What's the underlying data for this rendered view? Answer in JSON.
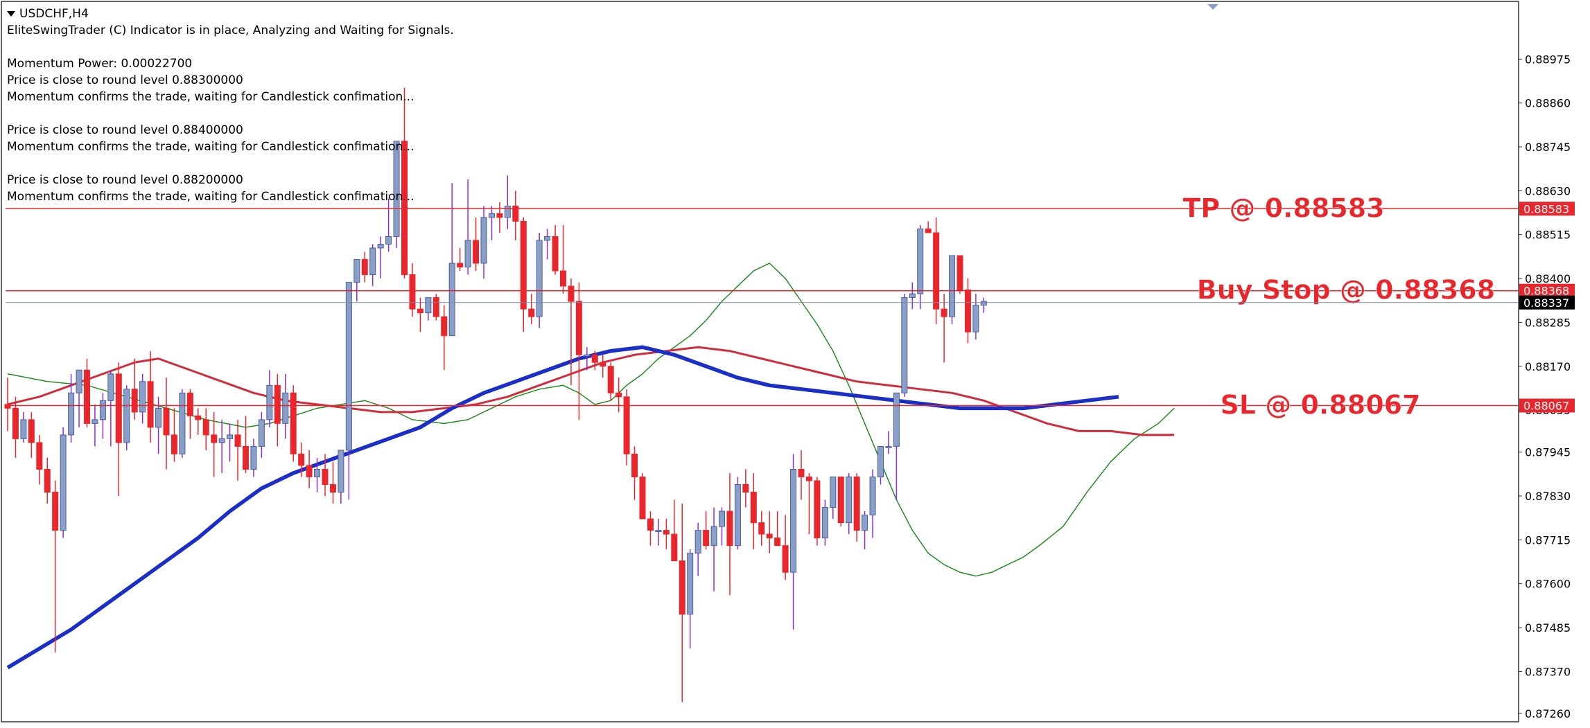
{
  "header": {
    "symbol": "USDCHF,H4",
    "status": "EliteSwingTrader (C) Indicator is in place, Analyzing and Waiting for Signals.",
    "lines": [
      "",
      "Momentum Power: 0.00022700",
      "Price is close to round level 0.88300000",
      "Momentum confirms the trade, waiting for Candlestick confimation...",
      "",
      "Price is close to round level 0.88400000",
      "Momentum confirms the trade, waiting for Candlestick confimation...",
      "",
      "Price is close to round level 0.88200000",
      "Momentum confirms the trade, waiting for Candlestick confimation..."
    ]
  },
  "colors": {
    "bull": "#8a9fc8",
    "bear": "#e8262c",
    "wick_bull": "#8a2be2",
    "wick_bear": "#e8262c",
    "ma_fast": "#228b22",
    "ma_mid": "#d02c3c",
    "ma_slow": "#1a2ec8",
    "level": "#e8262c",
    "bid": "#7a8aa8"
  },
  "chart_data": {
    "type": "candlestick",
    "title": "USDCHF,H4",
    "ylim": [
      0.8726,
      0.8909
    ],
    "y_ticks": [
      "0.88975",
      "0.88860",
      "0.88745",
      "0.88630",
      "0.88515",
      "0.88400",
      "0.88285",
      "0.88170",
      "0.88055",
      "0.87945",
      "0.87830",
      "0.87715",
      "0.87600",
      "0.87485",
      "0.87370",
      "0.87260"
    ],
    "levels": [
      {
        "name": "TP",
        "label": "TP @ 0.88583",
        "value": 0.88583,
        "tag": "0.88583"
      },
      {
        "name": "Buy Stop",
        "label": "Buy Stop @ 0.88368",
        "value": 0.88368,
        "tag": "0.88368"
      },
      {
        "name": "SL",
        "label": "SL @ 0.88067",
        "value": 0.88067,
        "tag": "0.88067"
      }
    ],
    "bid": {
      "value": 0.88337,
      "tag": "0.88337"
    },
    "candles": [
      [
        0.8807,
        0.8814,
        0.88,
        0.8806
      ],
      [
        0.8806,
        0.8809,
        0.8793,
        0.8798
      ],
      [
        0.8798,
        0.8805,
        0.8797,
        0.8803
      ],
      [
        0.8803,
        0.8805,
        0.8793,
        0.8797
      ],
      [
        0.8797,
        0.8799,
        0.8786,
        0.879
      ],
      [
        0.879,
        0.8793,
        0.8781,
        0.8784
      ],
      [
        0.8784,
        0.8787,
        0.8742,
        0.8774
      ],
      [
        0.8774,
        0.8801,
        0.8772,
        0.8799
      ],
      [
        0.8799,
        0.8815,
        0.8797,
        0.881
      ],
      [
        0.881,
        0.8816,
        0.8801,
        0.8816
      ],
      [
        0.8816,
        0.8819,
        0.8801,
        0.8802
      ],
      [
        0.8802,
        0.8807,
        0.8796,
        0.8803
      ],
      [
        0.8803,
        0.881,
        0.8798,
        0.8808
      ],
      [
        0.8808,
        0.8816,
        0.8796,
        0.8815
      ],
      [
        0.8815,
        0.8818,
        0.8783,
        0.8797
      ],
      [
        0.8797,
        0.8812,
        0.8795,
        0.8811
      ],
      [
        0.8811,
        0.8819,
        0.8803,
        0.8805
      ],
      [
        0.8805,
        0.8815,
        0.8802,
        0.8813
      ],
      [
        0.8813,
        0.8821,
        0.8797,
        0.8801
      ],
      [
        0.8801,
        0.8809,
        0.8794,
        0.8806
      ],
      [
        0.8806,
        0.8814,
        0.879,
        0.8799
      ],
      [
        0.8799,
        0.8806,
        0.8792,
        0.8794
      ],
      [
        0.8794,
        0.8811,
        0.8793,
        0.881
      ],
      [
        0.881,
        0.8811,
        0.8798,
        0.8804
      ],
      [
        0.8804,
        0.8806,
        0.8799,
        0.8803
      ],
      [
        0.8803,
        0.8806,
        0.8795,
        0.8799
      ],
      [
        0.8799,
        0.8805,
        0.8788,
        0.8797
      ],
      [
        0.8797,
        0.8803,
        0.8789,
        0.8798
      ],
      [
        0.8798,
        0.8802,
        0.8792,
        0.8799
      ],
      [
        0.8799,
        0.8803,
        0.8787,
        0.8796
      ],
      [
        0.8796,
        0.8804,
        0.8789,
        0.879
      ],
      [
        0.879,
        0.8798,
        0.8788,
        0.8796
      ],
      [
        0.8796,
        0.8805,
        0.8793,
        0.8803
      ],
      [
        0.8803,
        0.8816,
        0.8801,
        0.8812
      ],
      [
        0.8812,
        0.8815,
        0.8796,
        0.8802
      ],
      [
        0.8802,
        0.8815,
        0.8798,
        0.881
      ],
      [
        0.881,
        0.8812,
        0.8792,
        0.8794
      ],
      [
        0.8794,
        0.8797,
        0.8788,
        0.8791
      ],
      [
        0.8791,
        0.8795,
        0.8785,
        0.8788
      ],
      [
        0.8788,
        0.8793,
        0.8784,
        0.879
      ],
      [
        0.879,
        0.8794,
        0.8783,
        0.8786
      ],
      [
        0.8786,
        0.8792,
        0.8781,
        0.8784
      ],
      [
        0.8784,
        0.8795,
        0.8781,
        0.8795
      ],
      [
        0.8795,
        0.8839,
        0.8782,
        0.8839
      ],
      [
        0.8839,
        0.8845,
        0.8834,
        0.8845
      ],
      [
        0.8845,
        0.8847,
        0.8839,
        0.8841
      ],
      [
        0.8841,
        0.8849,
        0.8838,
        0.8848
      ],
      [
        0.8848,
        0.8851,
        0.884,
        0.8849
      ],
      [
        0.8849,
        0.8861,
        0.8847,
        0.8851
      ],
      [
        0.8851,
        0.8876,
        0.8848,
        0.8876
      ],
      [
        0.8876,
        0.889,
        0.884,
        0.8841
      ],
      [
        0.8841,
        0.8844,
        0.883,
        0.8832
      ],
      [
        0.8832,
        0.8835,
        0.8826,
        0.8831
      ],
      [
        0.8831,
        0.8835,
        0.8829,
        0.8835
      ],
      [
        0.8835,
        0.8836,
        0.8829,
        0.883
      ],
      [
        0.883,
        0.8833,
        0.8816,
        0.8825
      ],
      [
        0.8825,
        0.8865,
        0.8825,
        0.8844
      ],
      [
        0.8844,
        0.8848,
        0.8842,
        0.8843
      ],
      [
        0.8843,
        0.8866,
        0.8841,
        0.885
      ],
      [
        0.885,
        0.8856,
        0.8842,
        0.8844
      ],
      [
        0.8844,
        0.8859,
        0.884,
        0.8856
      ],
      [
        0.8856,
        0.8859,
        0.885,
        0.8857
      ],
      [
        0.8857,
        0.886,
        0.8852,
        0.8856
      ],
      [
        0.8856,
        0.8867,
        0.8853,
        0.8859
      ],
      [
        0.8859,
        0.8863,
        0.885,
        0.8855
      ],
      [
        0.8855,
        0.8856,
        0.8826,
        0.8832
      ],
      [
        0.8832,
        0.8836,
        0.8828,
        0.883
      ],
      [
        0.883,
        0.8852,
        0.8827,
        0.885
      ],
      [
        0.885,
        0.8853,
        0.8845,
        0.8851
      ],
      [
        0.8851,
        0.8854,
        0.8841,
        0.8842
      ],
      [
        0.8842,
        0.8854,
        0.8836,
        0.8838
      ],
      [
        0.8838,
        0.884,
        0.8812,
        0.8834
      ],
      [
        0.8834,
        0.8839,
        0.8803,
        0.882
      ],
      [
        0.882,
        0.8822,
        0.8816,
        0.882
      ],
      [
        0.882,
        0.8821,
        0.8816,
        0.8818
      ],
      [
        0.8818,
        0.882,
        0.8814,
        0.8817
      ],
      [
        0.8817,
        0.8818,
        0.8808,
        0.881
      ],
      [
        0.881,
        0.8814,
        0.8805,
        0.8809
      ],
      [
        0.8809,
        0.8811,
        0.8791,
        0.8794
      ],
      [
        0.8794,
        0.8796,
        0.8782,
        0.8788
      ],
      [
        0.8788,
        0.8789,
        0.8777,
        0.8777
      ],
      [
        0.8777,
        0.8779,
        0.877,
        0.8774
      ],
      [
        0.8774,
        0.8777,
        0.877,
        0.8774
      ],
      [
        0.8774,
        0.8777,
        0.8769,
        0.8773
      ],
      [
        0.8773,
        0.8782,
        0.8766,
        0.8766
      ],
      [
        0.8766,
        0.8781,
        0.8729,
        0.8752
      ],
      [
        0.8752,
        0.8769,
        0.8743,
        0.8768
      ],
      [
        0.8768,
        0.8776,
        0.8762,
        0.8774
      ],
      [
        0.8774,
        0.8779,
        0.8769,
        0.877
      ],
      [
        0.877,
        0.878,
        0.8758,
        0.8775
      ],
      [
        0.8775,
        0.878,
        0.877,
        0.8779
      ],
      [
        0.8779,
        0.8789,
        0.8757,
        0.877
      ],
      [
        0.877,
        0.8788,
        0.8769,
        0.8786
      ],
      [
        0.8786,
        0.879,
        0.878,
        0.8784
      ],
      [
        0.8784,
        0.8789,
        0.8769,
        0.8776
      ],
      [
        0.8776,
        0.8779,
        0.877,
        0.8773
      ],
      [
        0.8773,
        0.8779,
        0.8768,
        0.8772
      ],
      [
        0.8772,
        0.8779,
        0.877,
        0.877
      ],
      [
        0.877,
        0.8778,
        0.8761,
        0.8763
      ],
      [
        0.8763,
        0.8794,
        0.8748,
        0.879
      ],
      [
        0.879,
        0.8795,
        0.8782,
        0.8788
      ],
      [
        0.8788,
        0.8789,
        0.8773,
        0.8787
      ],
      [
        0.8787,
        0.8788,
        0.877,
        0.8772
      ],
      [
        0.8772,
        0.8782,
        0.877,
        0.878
      ],
      [
        0.878,
        0.8788,
        0.8777,
        0.8788
      ],
      [
        0.8788,
        0.8788,
        0.8775,
        0.8776
      ],
      [
        0.8776,
        0.8789,
        0.8773,
        0.8788
      ],
      [
        0.8788,
        0.8789,
        0.8771,
        0.8774
      ],
      [
        0.8774,
        0.8779,
        0.8769,
        0.8778
      ],
      [
        0.8778,
        0.879,
        0.8772,
        0.8788
      ],
      [
        0.8788,
        0.8796,
        0.8786,
        0.8796
      ],
      [
        0.8796,
        0.88,
        0.8794,
        0.8796
      ],
      [
        0.8796,
        0.881,
        0.8782,
        0.881
      ],
      [
        0.881,
        0.8836,
        0.8809,
        0.8835
      ],
      [
        0.8835,
        0.8839,
        0.8832,
        0.8836
      ],
      [
        0.8836,
        0.8854,
        0.8832,
        0.8853
      ],
      [
        0.8853,
        0.8855,
        0.8852,
        0.8852
      ],
      [
        0.8852,
        0.8856,
        0.8828,
        0.8832
      ],
      [
        0.8832,
        0.8836,
        0.8818,
        0.883
      ],
      [
        0.883,
        0.8846,
        0.8828,
        0.8846
      ],
      [
        0.8846,
        0.8846,
        0.8836,
        0.8837
      ],
      [
        0.8837,
        0.884,
        0.8823,
        0.8826
      ],
      [
        0.8826,
        0.8836,
        0.8824,
        0.8833
      ],
      [
        0.8833,
        0.8835,
        0.8831,
        0.8834
      ]
    ],
    "ma_fast": [
      0.8815,
      0.8813,
      0.8812,
      0.8809,
      0.8806,
      0.8803,
      0.8801,
      0.8802,
      0.8804,
      0.8806,
      0.8807,
      0.8808,
      0.8806,
      0.8803,
      0.8802,
      0.8803,
      0.8806,
      0.8809,
      0.8811,
      0.8812,
      0.881,
      0.8807,
      0.8808,
      0.8812,
      0.8815,
      0.8819,
      0.8822,
      0.8825,
      0.8829,
      0.8834,
      0.8838,
      0.8842,
      0.8844,
      0.884,
      0.8834,
      0.8828,
      0.8821,
      0.8812,
      0.8802,
      0.8792,
      0.8782,
      0.8774,
      0.8768,
      0.8765,
      0.8763,
      0.8762,
      0.8763,
      0.8765,
      0.8767,
      0.877,
      0.8775,
      0.8784,
      0.8792,
      0.8798,
      0.8802,
      0.8806
    ],
    "ma_fast_x": [
      0,
      5,
      10,
      15,
      20,
      25,
      30,
      33,
      36,
      39,
      42,
      45,
      48,
      51,
      55,
      58,
      61,
      64,
      67,
      70,
      72,
      74,
      76,
      78,
      80,
      82,
      84,
      86,
      88,
      90,
      92,
      94,
      96,
      98,
      100,
      102,
      104,
      106,
      108,
      110,
      112,
      114,
      116,
      118,
      120,
      122,
      124,
      126,
      128,
      130,
      133,
      136,
      139,
      142,
      145,
      147
    ],
    "ma_mid": [
      0.8807,
      0.8809,
      0.8812,
      0.8815,
      0.8818,
      0.8819,
      0.8816,
      0.8813,
      0.881,
      0.8808,
      0.8807,
      0.8806,
      0.8805,
      0.8805,
      0.8806,
      0.8807,
      0.8809,
      0.8812,
      0.8815,
      0.8818,
      0.882,
      0.8821,
      0.8822,
      0.8821,
      0.8819,
      0.8817,
      0.8815,
      0.8813,
      0.8812,
      0.8811,
      0.881,
      0.8808,
      0.8805,
      0.8802,
      0.88,
      0.88,
      0.8799,
      0.8799
    ],
    "ma_mid_x": [
      0,
      4,
      8,
      12,
      16,
      19,
      23,
      27,
      31,
      35,
      39,
      43,
      47,
      51,
      55,
      59,
      63,
      67,
      71,
      75,
      79,
      83,
      87,
      91,
      95,
      99,
      103,
      107,
      111,
      115,
      119,
      123,
      127,
      131,
      135,
      139,
      143,
      147
    ],
    "ma_slow": [
      0.8738,
      0.8743,
      0.8748,
      0.8754,
      0.876,
      0.8766,
      0.8772,
      0.8779,
      0.8785,
      0.8789,
      0.8792,
      0.8795,
      0.8798,
      0.8801,
      0.8806,
      0.881,
      0.8813,
      0.8816,
      0.8819,
      0.8821,
      0.8822,
      0.882,
      0.8817,
      0.8814,
      0.8812,
      0.8811,
      0.881,
      0.8809,
      0.8808,
      0.8807,
      0.8806,
      0.8806,
      0.8806,
      0.8807,
      0.8808,
      0.8809
    ],
    "ma_slow_x": [
      0,
      4,
      8,
      12,
      16,
      20,
      24,
      28,
      32,
      36,
      40,
      44,
      48,
      52,
      56,
      60,
      64,
      68,
      72,
      76,
      80,
      84,
      88,
      92,
      96,
      100,
      104,
      108,
      112,
      116,
      120,
      124,
      128,
      132,
      136,
      140
    ]
  }
}
